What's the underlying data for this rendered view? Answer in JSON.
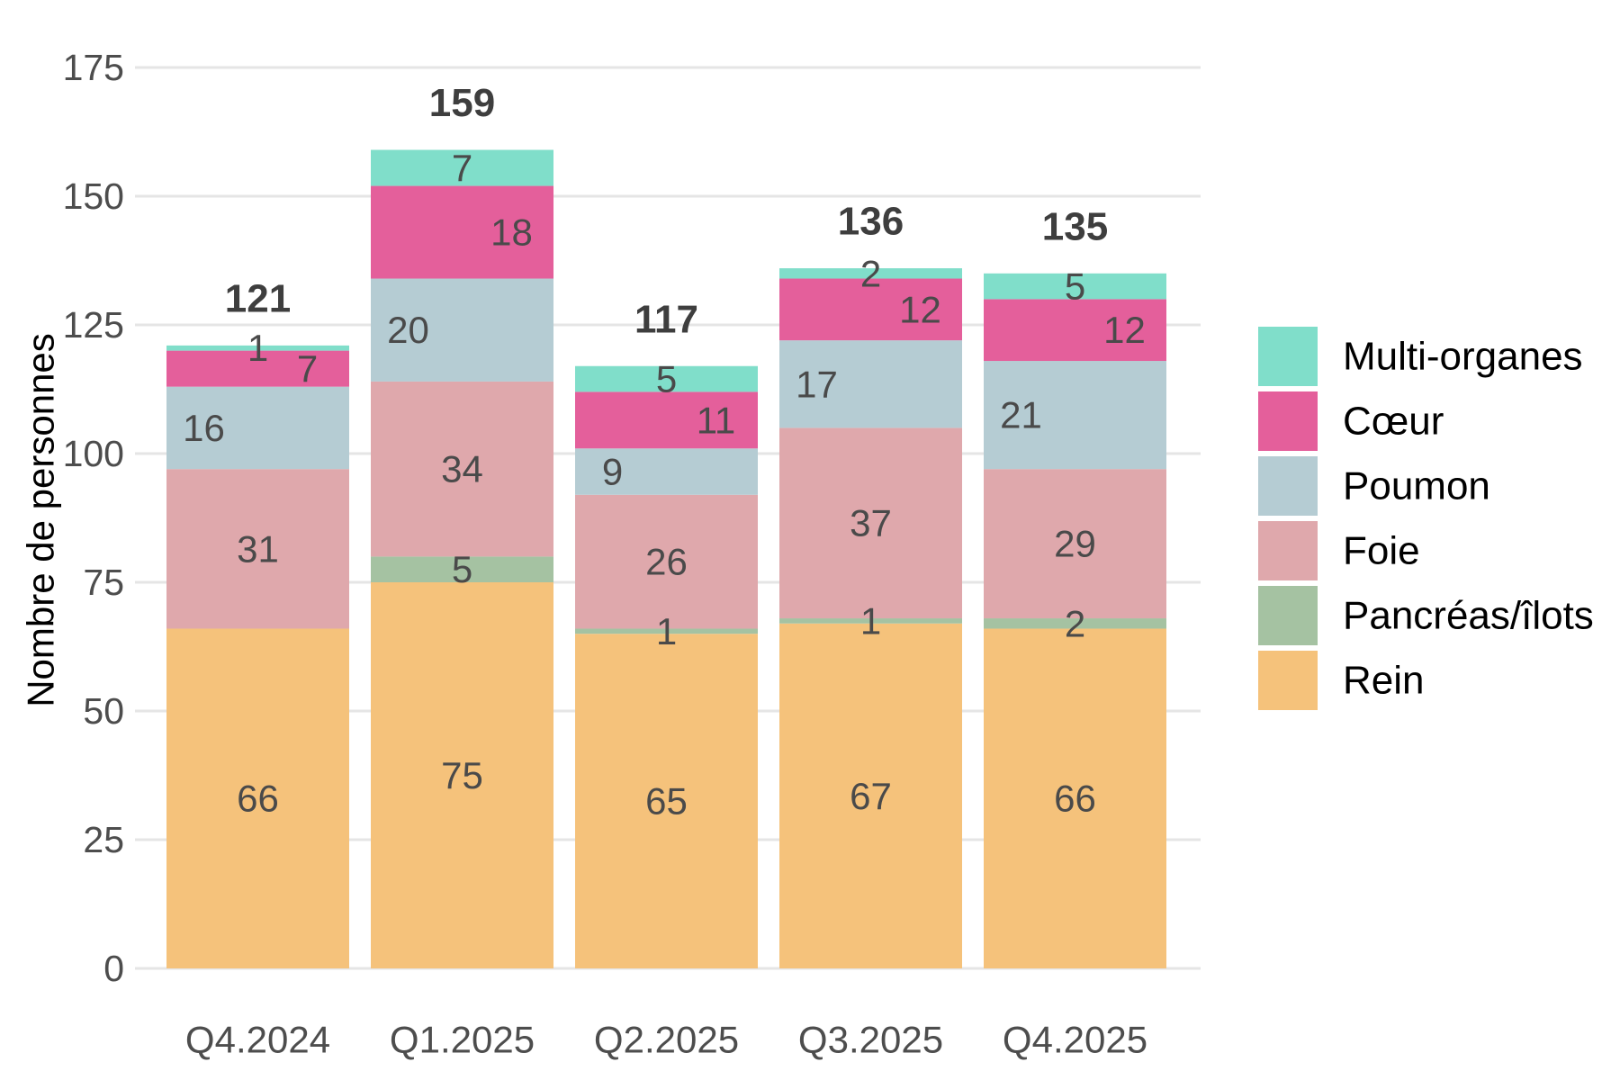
{
  "chart_data": {
    "type": "bar",
    "stacked": true,
    "title": "",
    "xlabel": "",
    "ylabel": "Nombre de personnes",
    "ylim": [
      0,
      175
    ],
    "yticks": [
      0,
      25,
      50,
      75,
      100,
      125,
      150,
      175
    ],
    "grid": "horizontal-only",
    "categories": [
      "Q4.2024",
      "Q1.2025",
      "Q2.2025",
      "Q3.2025",
      "Q4.2025"
    ],
    "series": [
      {
        "name": "Rein",
        "color": "#F5C27B",
        "values": [
          66,
          75,
          65,
          67,
          66
        ]
      },
      {
        "name": "Pancréas/îlots",
        "color": "#A5C2A2",
        "values": [
          0,
          5,
          1,
          1,
          2
        ]
      },
      {
        "name": "Foie",
        "color": "#DFA8AC",
        "values": [
          31,
          34,
          26,
          37,
          29
        ]
      },
      {
        "name": "Poumon",
        "color": "#B5CCD3",
        "values": [
          16,
          20,
          9,
          17,
          21
        ]
      },
      {
        "name": "Cœur",
        "color": "#E45F9B",
        "values": [
          7,
          18,
          11,
          12,
          12
        ]
      },
      {
        "name": "Multi-organes",
        "color": "#80DECA",
        "values": [
          1,
          7,
          5,
          2,
          5
        ]
      }
    ],
    "totals": [
      121,
      159,
      117,
      136,
      135
    ],
    "legend": {
      "position": "right",
      "order": [
        "Multi-organes",
        "Cœur",
        "Poumon",
        "Foie",
        "Pancréas/îlots",
        "Rein"
      ]
    },
    "colors": {
      "gridline": "#E5E5E5",
      "tick_label": "#4D4D4D",
      "value_label": "#4A4A4A",
      "total_label": "#3E3E3E",
      "axis_title": "#000000",
      "legend_label": "#000000",
      "background": "#FFFFFF"
    }
  }
}
